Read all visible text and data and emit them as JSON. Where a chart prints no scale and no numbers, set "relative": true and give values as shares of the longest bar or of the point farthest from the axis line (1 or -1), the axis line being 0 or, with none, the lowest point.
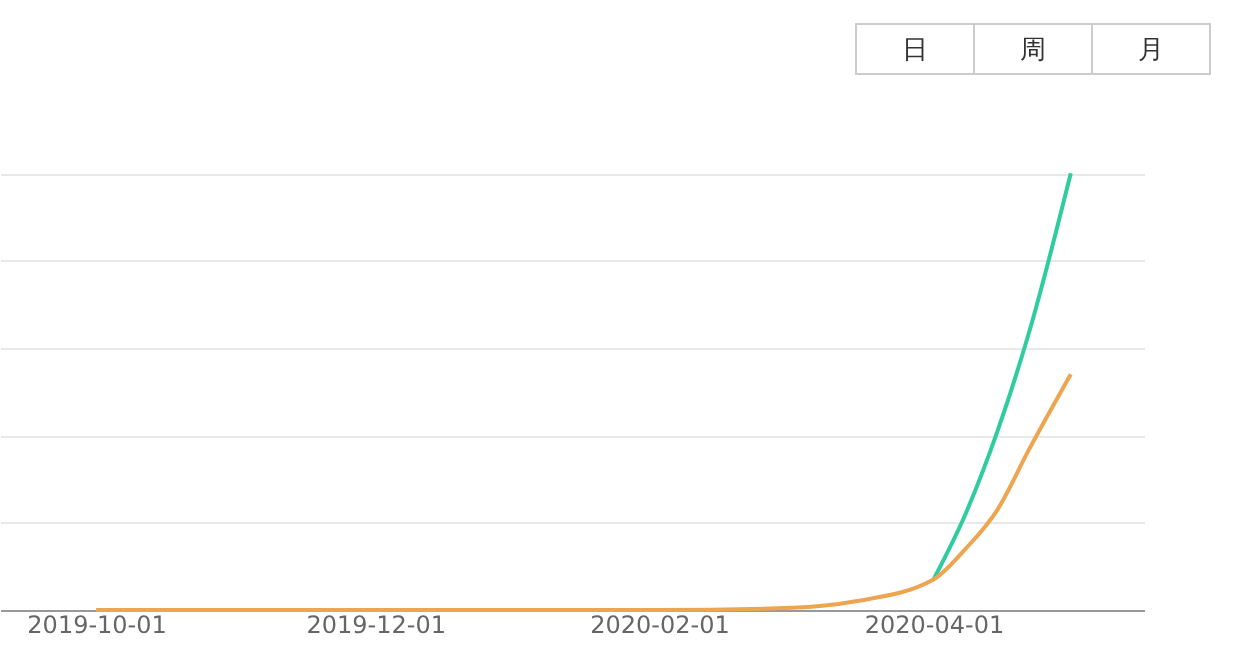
{
  "chart_data": {
    "type": "line",
    "relative": true,
    "grid": "y",
    "tick_labels": "x",
    "x": [
      "2019-10-01",
      "2019-11-01",
      "2019-12-01",
      "2020-01-01",
      "2020-02-01",
      "2020-03-01",
      "2020-03-15",
      "2020-04-01",
      "2020-04-08",
      "2020-04-15",
      "2020-04-22",
      "2020-05-01"
    ],
    "xlim": [
      "2019-09-10",
      "2020-05-17"
    ],
    "xticks": [
      "2019-10-01",
      "2019-12-01",
      "2020-02-01",
      "2020-04-01"
    ],
    "series": [
      {
        "color": "#2ecc9e",
        "values": [
          null,
          null,
          null,
          null,
          null,
          null,
          null,
          0.07,
          0.22,
          0.41,
          0.64,
          1.0
        ]
      },
      {
        "color": "#eea54f",
        "values": [
          0,
          0,
          0,
          0,
          0,
          0.005,
          0.02,
          0.07,
          0.14,
          0.23,
          0.37,
          0.54
        ]
      }
    ],
    "annotations": [
      "日",
      "周",
      "月"
    ]
  }
}
